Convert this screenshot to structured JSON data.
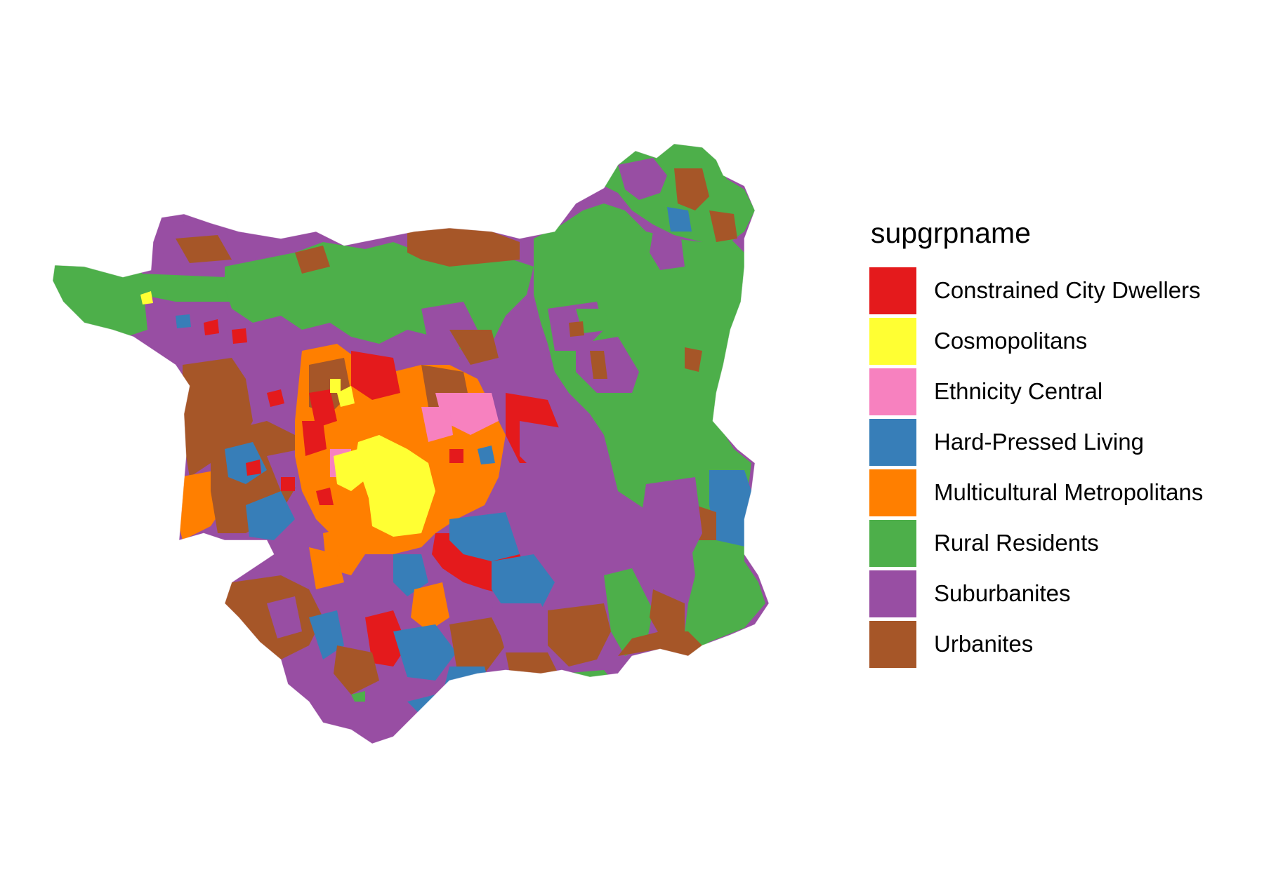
{
  "legend": {
    "title": "supgrpname",
    "items": [
      {
        "label": "Constrained City Dwellers",
        "color": "#E41A1C"
      },
      {
        "label": "Cosmopolitans",
        "color": "#FFFF33"
      },
      {
        "label": "Ethnicity Central",
        "color": "#F781BF"
      },
      {
        "label": "Hard-Pressed Living",
        "color": "#377EB8"
      },
      {
        "label": "Multicultural Metropolitans",
        "color": "#FF7F00"
      },
      {
        "label": "Rural Residents",
        "color": "#4DAF4A"
      },
      {
        "label": "Suburbanites",
        "color": "#984EA3"
      },
      {
        "label": "Urbanites",
        "color": "#A65628"
      }
    ]
  }
}
